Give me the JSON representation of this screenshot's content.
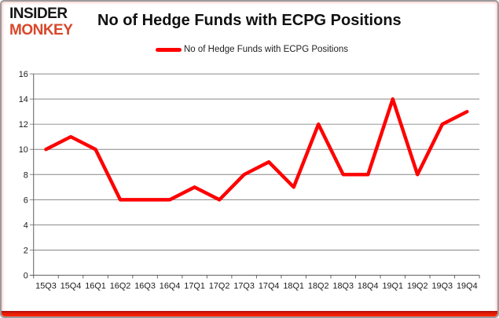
{
  "brand": {
    "line1": "INSIDER",
    "line2": "MONKEY",
    "line1_color": "#161616",
    "line2_color": "#d8472b"
  },
  "chart_data": {
    "type": "line",
    "title": "No of Hedge Funds with ECPG Positions",
    "categories": [
      "15Q3",
      "15Q4",
      "16Q1",
      "16Q2",
      "16Q3",
      "16Q4",
      "17Q1",
      "17Q2",
      "17Q3",
      "17Q4",
      "18Q1",
      "18Q2",
      "18Q3",
      "18Q4",
      "19Q1",
      "19Q2",
      "19Q3",
      "19Q4"
    ],
    "series": [
      {
        "name": "No of Hedge Funds with ECPG Positions",
        "color": "#fe0000",
        "values": [
          10,
          11,
          10,
          6,
          6,
          6,
          7,
          6,
          8,
          9,
          7,
          12,
          8,
          8,
          14,
          8,
          12,
          13
        ]
      }
    ],
    "xlabel": "",
    "ylabel": "",
    "ylim": [
      0,
      16
    ],
    "ytick_step": 2,
    "grid": true,
    "legend_position": "top-center"
  },
  "colors": {
    "grid": "#878787",
    "axis": "#5f5f5f",
    "label": "#1a1a1a",
    "line": "#fe0000",
    "frame_bottom": "#e41b00"
  }
}
